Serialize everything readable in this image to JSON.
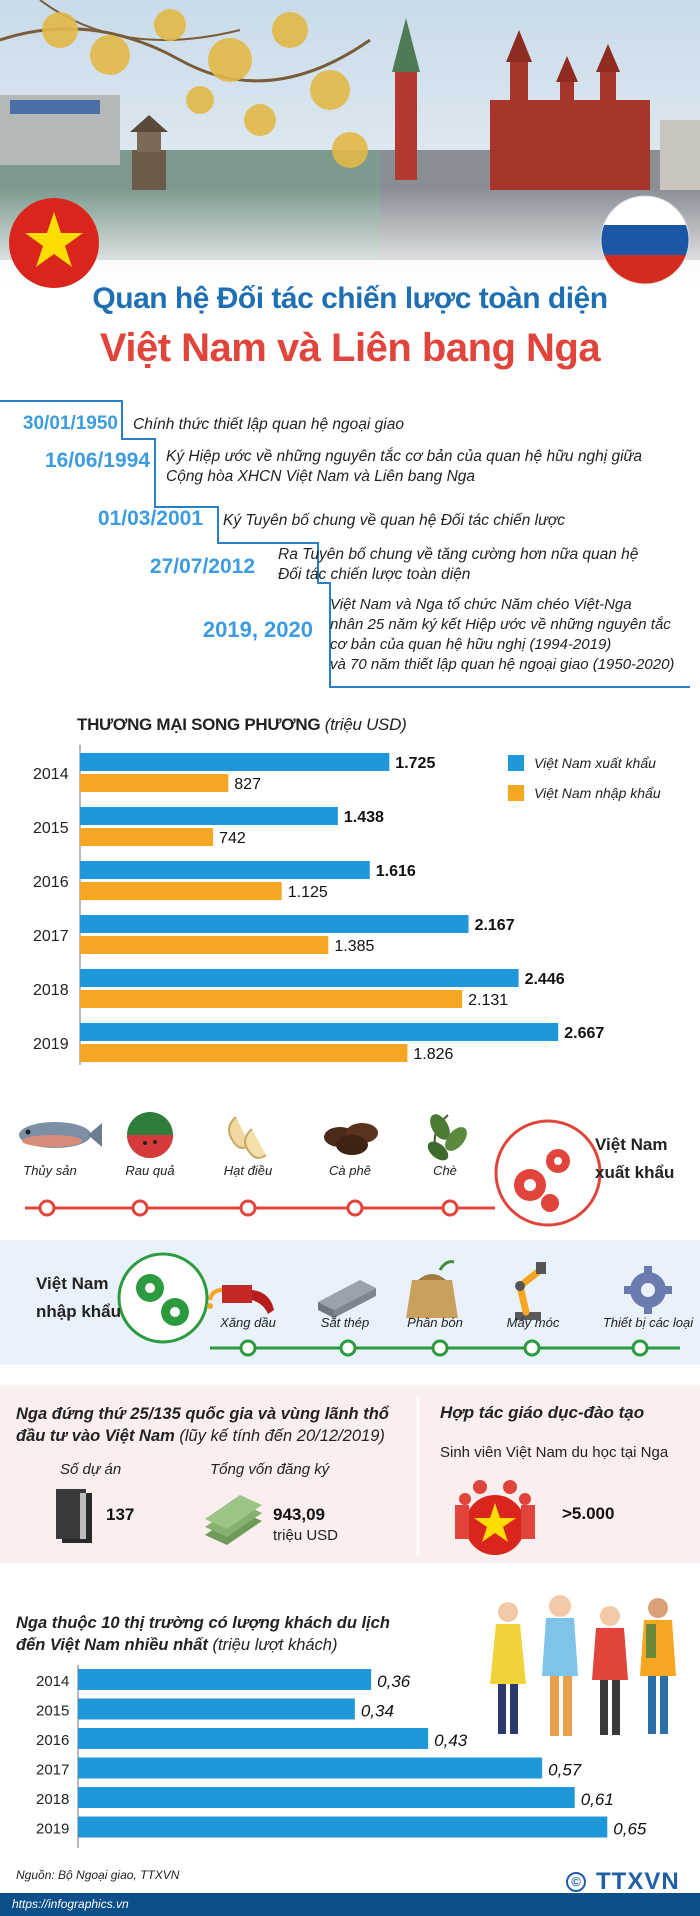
{
  "title": {
    "line1": "Quan hệ Đối tác chiến lược toàn diện",
    "line2": "Việt Nam và Liên bang Nga"
  },
  "colors": {
    "blue": "#1f97d8",
    "orange": "#f6a623",
    "red": "#e0443a",
    "title_blue": "#1f6fb5",
    "date_blue": "#3d9be0"
  },
  "timeline": [
    {
      "date": "30/01/1950",
      "lines": [
        "Chính thức thiết lập quan hệ ngoại giao"
      ]
    },
    {
      "date": "16/06/1994",
      "lines": [
        "Ký Hiệp ước về những nguyên tắc cơ bản của quan hệ hữu nghị giữa",
        "Cộng hòa XHCN Việt Nam và Liên bang Nga"
      ]
    },
    {
      "date": "01/03/2001",
      "lines": [
        "Ký Tuyên bố chung về quan hệ Đối tác chiến lược"
      ]
    },
    {
      "date": "27/07/2012",
      "lines": [
        "Ra Tuyên bố chung về tăng cường hơn nữa quan hệ",
        "Đối tác chiến lược toàn diện"
      ]
    },
    {
      "date": "2019, 2020",
      "lines": [
        "Việt Nam và Nga tổ chức Năm chéo Việt-Nga",
        "nhân 25 năm ký kết Hiệp ước về những nguyên tắc",
        "cơ bản của quan hệ hữu nghị (1994-2019)",
        "và 70 năm thiết lập quan hệ ngoại giao (1950-2020)"
      ]
    }
  ],
  "trade": {
    "title": "THƯƠNG MẠI SONG PHƯƠNG",
    "unit": "(triệu USD)"
  },
  "chart_data": [
    {
      "type": "bar",
      "orientation": "horizontal",
      "title": "THƯƠNG MẠI SONG PHƯƠNG (triệu USD)",
      "categories": [
        "2014",
        "2015",
        "2016",
        "2017",
        "2018",
        "2019"
      ],
      "series": [
        {
          "name": "Việt Nam xuất khẩu",
          "color": "#1f97d8",
          "values": [
            1725,
            1438,
            1616,
            2167,
            2446,
            2667
          ],
          "labels": [
            "1.725",
            "1.438",
            "1.616",
            "2.167",
            "2.446",
            "2.667"
          ]
        },
        {
          "name": "Việt Nam nhập khẩu",
          "color": "#f6a623",
          "values": [
            827,
            742,
            1125,
            1385,
            2131,
            1826
          ],
          "labels": [
            "827",
            "742",
            "1.125",
            "1.385",
            "2.131",
            "1.826"
          ]
        }
      ],
      "xlim": [
        0,
        2900
      ],
      "legend_position": "top-right"
    },
    {
      "type": "bar",
      "orientation": "horizontal",
      "title": "Nga thuộc 10 thị trường có lượng khách du lịch đến Việt Nam nhiều nhất (triệu lượt khách)",
      "categories": [
        "2014",
        "2015",
        "2016",
        "2017",
        "2018",
        "2019"
      ],
      "series": [
        {
          "color": "#1f97d8",
          "values": [
            0.36,
            0.34,
            0.43,
            0.57,
            0.61,
            0.65
          ],
          "labels": [
            "0,36",
            "0,34",
            "0,43",
            "0,57",
            "0,61",
            "0,65"
          ]
        }
      ],
      "xlim": [
        0,
        0.7
      ]
    }
  ],
  "exports": {
    "caption_line1": "Việt Nam",
    "caption_line2": "xuất khẩu",
    "items": [
      {
        "label": "Thủy sản",
        "icon": "fish-icon"
      },
      {
        "label": "Rau quả",
        "icon": "watermelon-icon"
      },
      {
        "label": "Hạt điều",
        "icon": "cashew-icon"
      },
      {
        "label": "Cà phê",
        "icon": "coffee-bean-icon"
      },
      {
        "label": "Chè",
        "icon": "tea-leaf-icon"
      }
    ]
  },
  "imports": {
    "caption_line1": "Việt Nam",
    "caption_line2": "nhập khẩu",
    "items": [
      {
        "label": "Xăng dầu",
        "icon": "fuel-nozzle-icon"
      },
      {
        "label": "Sắt thép",
        "icon": "steel-beam-icon"
      },
      {
        "label": "Phân bón",
        "icon": "fertilizer-bag-icon"
      },
      {
        "label": "Máy móc",
        "icon": "robot-arm-icon"
      },
      {
        "label": "Thiết bị các loại",
        "icon": "gear-icon"
      }
    ]
  },
  "investment": {
    "heading_line1": "Nga đứng thứ 25/135 quốc gia và vùng lãnh thổ",
    "heading_line2": "đầu tư vào Việt Nam",
    "heading_note": "(lũy kế tính đến 20/12/2019)",
    "projects_label": "Số dự án",
    "projects_value": "137",
    "capital_label": "Tổng vốn đăng ký",
    "capital_value": "943,09",
    "capital_unit": "triệu USD"
  },
  "education": {
    "heading": "Hợp tác giáo dục-đào tạo",
    "sub": "Sinh viên Việt Nam du học tại Nga",
    "value": ">5.000"
  },
  "tourism": {
    "heading_line1": "Nga thuộc 10 thị trường có lượng khách du lịch",
    "heading_line2": "đến Việt Nam nhiều nhất",
    "unit": "(triệu lượt khách)"
  },
  "footer": {
    "source": "Nguồn: Bộ Ngoại giao, TTXVN",
    "site": "https://infographics.vn",
    "logo": "TTXVN",
    "copyright": "©"
  }
}
